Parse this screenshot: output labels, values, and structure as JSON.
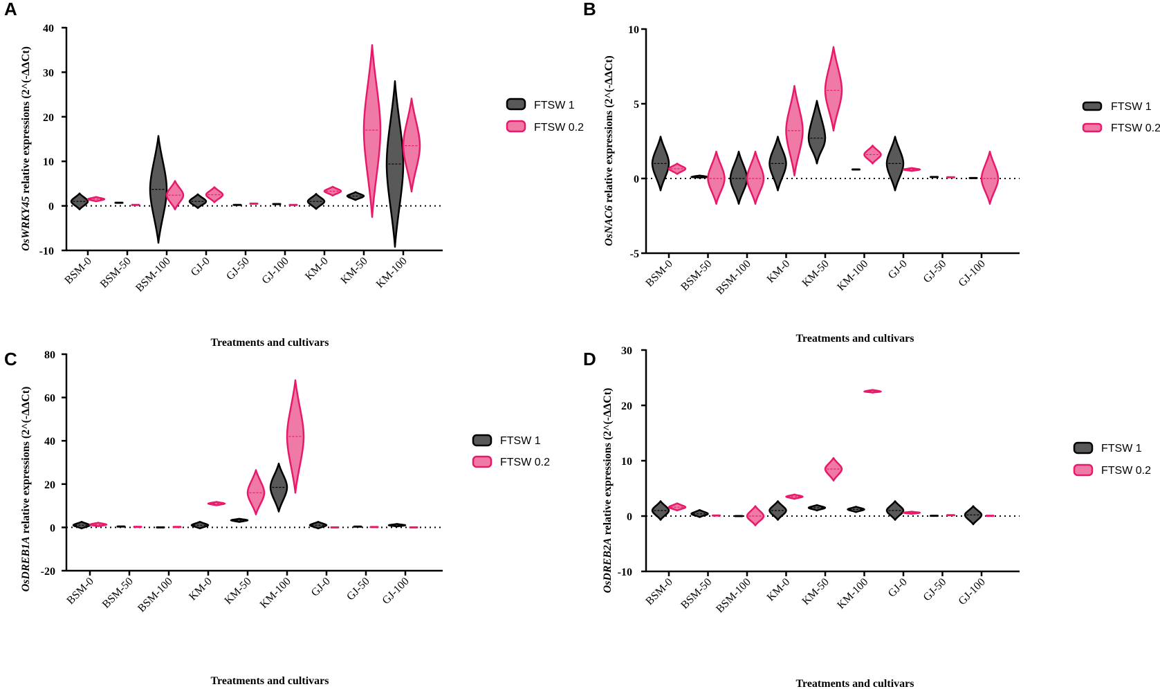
{
  "colors": {
    "ftsw1": "#000000",
    "ftsw1_fill": "#595959",
    "ftsw02": "#e8196b",
    "ftsw02_fill": "#f07aa6"
  },
  "chart_data": [
    {
      "panel": "A",
      "type": "violin",
      "ylabel_italic": "OsWRKY45",
      "ylabel_rest": " relative expressions (2^(-ΔΔCt)",
      "xlabel": "Treatments and cultivars",
      "ylim": [
        -10,
        40
      ],
      "yticks": [
        -10,
        0,
        10,
        20,
        30,
        40
      ],
      "categories": [
        "BSM-0",
        "BSM-50",
        "BSM-100",
        "GJ-0",
        "GJ-50",
        "GJ-100",
        "KM-0",
        "KM-50",
        "KM-100"
      ],
      "legend_position": "right",
      "series": [
        {
          "name": "FTSW 1",
          "min": [
            -0.8,
            0.5,
            -8.3,
            -0.5,
            0.1,
            0.2,
            -0.7,
            1.3,
            -9.2
          ],
          "max": [
            2.8,
            0.9,
            15.7,
            2.6,
            0.3,
            0.6,
            2.7,
            3.1,
            28.0
          ],
          "median": [
            1.0,
            0.7,
            3.7,
            1.0,
            0.2,
            0.4,
            1.0,
            2.2,
            9.4
          ]
        },
        {
          "name": "FTSW 0.2",
          "min": [
            1.0,
            0.1,
            -0.8,
            0.8,
            0.3,
            0.1,
            2.3,
            -2.5,
            3.2
          ],
          "max": [
            2.0,
            0.3,
            5.6,
            4.2,
            0.7,
            0.3,
            4.3,
            36.1,
            24.1
          ],
          "median": [
            1.5,
            0.2,
            2.4,
            2.5,
            0.5,
            0.2,
            3.3,
            17.0,
            13.5
          ]
        }
      ]
    },
    {
      "panel": "B",
      "type": "violin",
      "ylabel_italic": "OsNAC6",
      "ylabel_rest": " relative expressions (2^(-ΔΔCt)",
      "xlabel": "Treatments and cultivars",
      "ylim": [
        -5,
        10
      ],
      "yticks": [
        -5,
        0,
        5,
        10
      ],
      "categories": [
        "BSM-0",
        "BSM-50",
        "BSM-100",
        "KM-0",
        "KM-50",
        "KM-100",
        "GJ-0",
        "GJ-50",
        "GJ-100"
      ],
      "legend_position": "right",
      "series": [
        {
          "name": "FTSW 1",
          "min": [
            -0.8,
            0.05,
            -1.7,
            -0.8,
            1.0,
            0.55,
            -0.8,
            0.05,
            0.0
          ],
          "max": [
            2.8,
            0.2,
            1.8,
            2.8,
            5.2,
            0.65,
            2.8,
            0.15,
            0.05
          ],
          "median": [
            1.0,
            0.1,
            0.0,
            1.0,
            2.7,
            0.6,
            1.0,
            0.1,
            0.03
          ]
        },
        {
          "name": "FTSW 0.2",
          "min": [
            0.3,
            -1.7,
            -1.7,
            0.2,
            3.2,
            1.0,
            0.5,
            0.02,
            -1.7
          ],
          "max": [
            1.0,
            1.8,
            1.8,
            6.2,
            8.8,
            2.2,
            0.7,
            0.15,
            1.8
          ],
          "median": [
            0.65,
            0.0,
            0.0,
            3.2,
            5.9,
            1.6,
            0.6,
            0.08,
            0.0
          ]
        }
      ]
    },
    {
      "panel": "C",
      "type": "violin",
      "ylabel_italic": "OsDREB1A",
      "ylabel_rest": " relative expressions (2^(-ΔΔCt)",
      "xlabel": "Treatments and cultivars",
      "ylim": [
        -20,
        80
      ],
      "yticks": [
        -20,
        0,
        20,
        40,
        60,
        80
      ],
      "categories": [
        "BSM-0",
        "BSM-50",
        "BSM-100",
        "KM-0",
        "KM-50",
        "KM-100",
        "GJ-0",
        "GJ-50",
        "GJ-100"
      ],
      "legend_position": "right",
      "series": [
        {
          "name": "FTSW 1",
          "min": [
            -0.5,
            0.2,
            0.0,
            -0.5,
            2.5,
            7.3,
            -0.5,
            0.2,
            0.4
          ],
          "max": [
            2.6,
            0.6,
            0.0,
            2.6,
            4.0,
            29.5,
            2.6,
            0.5,
            1.6
          ],
          "median": [
            1.0,
            0.4,
            0.0,
            1.0,
            3.3,
            18.5,
            1.0,
            0.35,
            1.0
          ]
        },
        {
          "name": "FTSW 0.2",
          "min": [
            0.5,
            0.1,
            0.0,
            10.2,
            6.0,
            16.0,
            0.0,
            0.0,
            0.0
          ],
          "max": [
            2.2,
            0.4,
            0.5,
            11.8,
            26.5,
            68.0,
            0.0,
            0.3,
            0.0
          ],
          "median": [
            1.3,
            0.25,
            0.2,
            11.0,
            16.0,
            42.0,
            0.0,
            0.15,
            0.0
          ]
        }
      ]
    },
    {
      "panel": "D",
      "type": "violin",
      "ylabel_italic": "OsDREB2A",
      "ylabel_rest": " relative expressions (2^(-ΔΔCt)",
      "xlabel": "Treatments and cultivars",
      "ylim": [
        -10,
        30
      ],
      "yticks": [
        -10,
        0,
        10,
        20,
        30
      ],
      "categories": [
        "BSM-0",
        "BSM-50",
        "BSM-100",
        "KM-0",
        "KM-50",
        "KM-100",
        "GJ-0",
        "GJ-50",
        "GJ-100"
      ],
      "legend_position": "right",
      "series": [
        {
          "name": "FTSW 1",
          "min": [
            -0.7,
            -0.2,
            0.0,
            -0.7,
            1.0,
            0.7,
            -0.7,
            0.0,
            -1.5
          ],
          "max": [
            2.7,
            1.1,
            0.0,
            2.7,
            2.0,
            1.7,
            2.7,
            0.1,
            1.8
          ],
          "median": [
            1.0,
            0.4,
            0.0,
            1.0,
            1.5,
            1.2,
            1.0,
            0.05,
            0.2
          ]
        },
        {
          "name": "FTSW 0.2",
          "min": [
            1.0,
            0.0,
            -1.7,
            3.1,
            6.4,
            22.3,
            0.4,
            0.05,
            0.0
          ],
          "max": [
            2.3,
            0.3,
            1.8,
            3.9,
            10.5,
            22.8,
            0.8,
            0.25,
            0.15
          ],
          "median": [
            1.6,
            0.1,
            0.0,
            3.5,
            8.5,
            22.5,
            0.6,
            0.15,
            0.05
          ]
        }
      ]
    }
  ]
}
